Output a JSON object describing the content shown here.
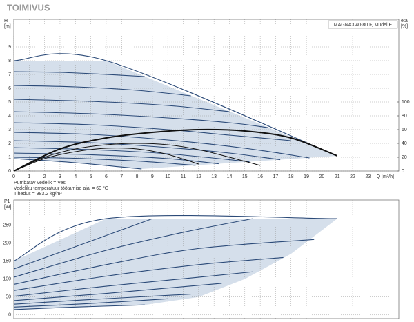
{
  "title": "TOIMIVUS",
  "chart_data": [
    {
      "type": "line",
      "y_label": [
        "H",
        "[m]"
      ],
      "y2_label": [
        "eta",
        "[%]"
      ],
      "x_label": "Q [m³/h]",
      "legend_text": "MAGNA3 40-80 F, Mudel E",
      "annotations": [
        "Pumbatav vedelik = Vesi",
        "Vedeliku temperatuur töötamise ajal = 60 °C",
        "Tihedus = 983.2 kg/m³"
      ],
      "xlim": [
        0,
        25
      ],
      "ylim": [
        0,
        11
      ],
      "y2lim": [
        0,
        220
      ],
      "xticks": [
        0,
        1,
        2,
        3,
        4,
        5,
        6,
        7,
        8,
        9,
        10,
        11,
        12,
        13,
        14,
        15,
        16,
        17,
        18,
        19,
        20,
        21,
        22,
        23
      ],
      "yticks": [
        0,
        1,
        2,
        3,
        4,
        5,
        6,
        7,
        8,
        9
      ],
      "y2ticks": [
        0,
        20,
        40,
        60,
        80,
        100
      ],
      "grid": true,
      "fill_color": "#d5dfeb",
      "color": "#2b4a78",
      "region": {
        "x": [
          0,
          6,
          21,
          17,
          13,
          8.3,
          4,
          0
        ],
        "values": [
          8,
          8,
          1.1,
          0.8,
          0.5,
          0.15,
          0.6,
          0.9
        ]
      },
      "series": [
        {
          "color": "#2b4a78",
          "x": [
            0,
            6,
            21
          ],
          "values": [
            8,
            8,
            1.1
          ]
        },
        {
          "color": "#2b4a78",
          "x": [
            0,
            3,
            6,
            8.5
          ],
          "values": [
            7.2,
            7.15,
            7.0,
            6.85
          ]
        },
        {
          "color": "#2b4a78",
          "x": [
            0,
            4,
            8,
            11.5
          ],
          "values": [
            6.2,
            6.1,
            5.85,
            5.45
          ]
        },
        {
          "color": "#2b4a78",
          "x": [
            0,
            5,
            10,
            14
          ],
          "values": [
            5.2,
            5.05,
            4.75,
            4.3
          ]
        },
        {
          "color": "#2b4a78",
          "x": [
            0,
            5,
            10,
            14,
            16.5
          ],
          "values": [
            4.3,
            4.15,
            3.85,
            3.5,
            3.15
          ]
        },
        {
          "color": "#2b4a78",
          "x": [
            0,
            5,
            10,
            14,
            18
          ],
          "values": [
            3.5,
            3.35,
            3.0,
            2.6,
            2.2
          ]
        },
        {
          "color": "#2b4a78",
          "x": [
            0,
            5,
            10,
            15,
            19.2
          ],
          "values": [
            2.8,
            2.65,
            2.25,
            1.65,
            0.95
          ]
        },
        {
          "color": "#2b4a78",
          "x": [
            0,
            5,
            10,
            14,
            17.3
          ],
          "values": [
            2.2,
            2.05,
            1.7,
            1.3,
            0.82
          ]
        },
        {
          "color": "#2b4a78",
          "x": [
            0,
            5,
            10,
            15.3
          ],
          "values": [
            1.7,
            1.55,
            1.25,
            0.67
          ]
        },
        {
          "color": "#2b4a78",
          "x": [
            0,
            5,
            10,
            13.3
          ],
          "values": [
            1.3,
            1.18,
            0.9,
            0.52
          ]
        },
        {
          "color": "#2b4a78",
          "x": [
            0,
            4,
            8,
            11.8
          ],
          "values": [
            1.0,
            0.92,
            0.72,
            0.41
          ]
        },
        {
          "color": "#2b4a78",
          "x": [
            0,
            4,
            8.3
          ],
          "values": [
            0.9,
            0.6,
            0.15
          ]
        },
        {
          "color": "#111111",
          "axis": "y2",
          "width": 2,
          "x": [
            0,
            3,
            6,
            9,
            12,
            15,
            18,
            21
          ],
          "values": [
            0,
            32,
            48,
            56,
            60,
            58,
            48,
            22
          ]
        },
        {
          "color": "#111111",
          "axis": "y2",
          "width": 1,
          "x": [
            0,
            2,
            4,
            6,
            8,
            10,
            12,
            14,
            16
          ],
          "values": [
            0,
            20,
            32,
            38,
            40,
            38,
            31,
            20,
            8
          ]
        },
        {
          "color": "#111111",
          "axis": "y2",
          "width": 1,
          "x": [
            0,
            2,
            4,
            6,
            8,
            10,
            12
          ],
          "values": [
            0,
            18,
            28,
            33,
            32,
            24,
            10
          ]
        }
      ]
    },
    {
      "type": "line",
      "y_label": [
        "P1",
        "[W]"
      ],
      "xlim": [
        0,
        25
      ],
      "ylim": [
        -10,
        320
      ],
      "xticks": [
        0,
        1,
        2,
        3,
        4,
        5,
        6,
        7,
        8,
        9,
        10,
        11,
        12,
        13,
        14,
        15,
        16,
        17,
        18,
        19,
        20,
        21,
        22,
        23
      ],
      "yticks": [
        0,
        50,
        100,
        150,
        200,
        250
      ],
      "grid": true,
      "fill_color": "#d5dfeb",
      "color": "#2b4a78",
      "region": {
        "x": [
          0,
          6,
          21,
          18,
          15,
          12,
          8.5,
          0
        ],
        "values": [
          150,
          268,
          268,
          170,
          100,
          50,
          28,
          15
        ]
      },
      "series": [
        {
          "color": "#2b4a78",
          "x": [
            0,
            6,
            21
          ],
          "values": [
            150,
            268,
            268
          ]
        },
        {
          "color": "#2b4a78",
          "x": [
            0,
            4,
            9
          ],
          "values": [
            128,
            190,
            268
          ]
        },
        {
          "color": "#2b4a78",
          "x": [
            0,
            6,
            11,
            15.5
          ],
          "values": [
            105,
            180,
            230,
            268
          ]
        },
        {
          "color": "#2b4a78",
          "x": [
            0,
            6,
            12,
            19.5
          ],
          "values": [
            85,
            140,
            185,
            210
          ]
        },
        {
          "color": "#2b4a78",
          "x": [
            0,
            6,
            12,
            17.5
          ],
          "values": [
            68,
            108,
            140,
            160
          ]
        },
        {
          "color": "#2b4a78",
          "x": [
            0,
            6,
            12,
            15.5
          ],
          "values": [
            52,
            80,
            105,
            120
          ]
        },
        {
          "color": "#2b4a78",
          "x": [
            0,
            6,
            10,
            13.5
          ],
          "values": [
            40,
            60,
            75,
            88
          ]
        },
        {
          "color": "#2b4a78",
          "x": [
            0,
            5,
            11.5
          ],
          "values": [
            30,
            43,
            58
          ]
        },
        {
          "color": "#2b4a78",
          "x": [
            0,
            5,
            10
          ],
          "values": [
            22,
            32,
            45
          ]
        },
        {
          "color": "#2b4a78",
          "x": [
            0,
            4,
            8.5
          ],
          "values": [
            15,
            22,
            28
          ]
        }
      ]
    }
  ]
}
